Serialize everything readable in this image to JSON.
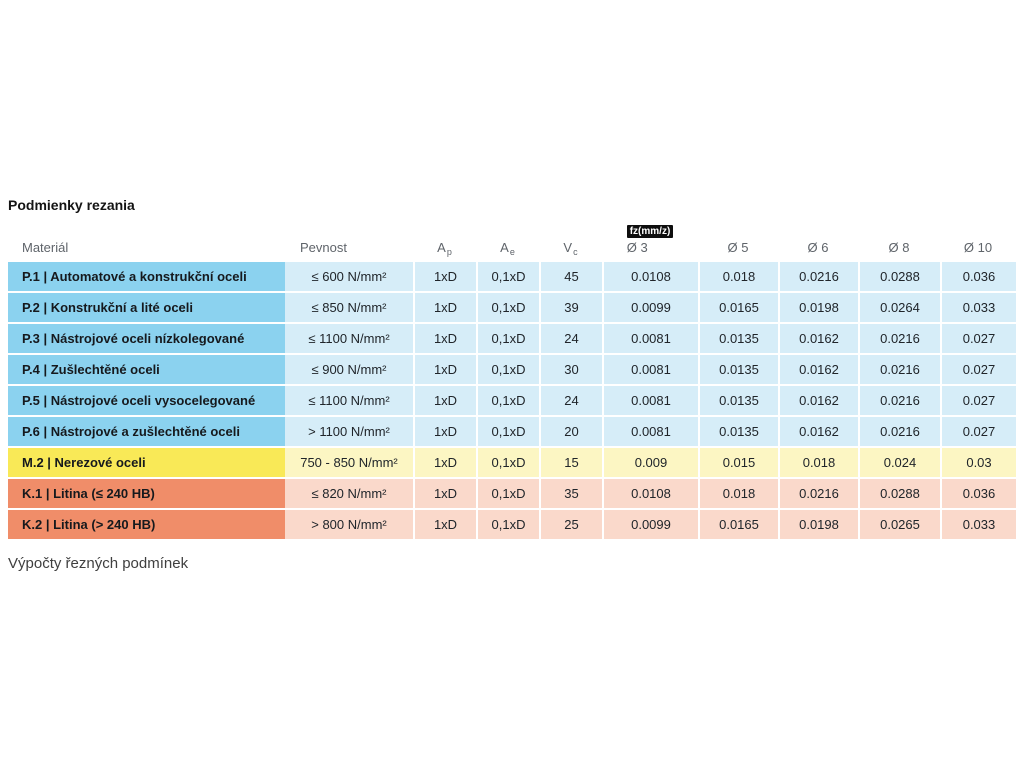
{
  "page": {
    "title": "Podmienky rezania",
    "footer_text": "Výpočty řezných podmínek",
    "background_color": "#ffffff"
  },
  "table": {
    "headers": {
      "material": "Materiál",
      "pevnost": "Pevnost",
      "ap": {
        "base": "A",
        "sub": "p"
      },
      "ae": {
        "base": "A",
        "sub": "e"
      },
      "vc": {
        "base": "V",
        "sub": "c"
      },
      "fz_badge": "fz(mm/z)",
      "diameters": [
        "Ø 3",
        "Ø 5",
        "Ø 6",
        "Ø 8",
        "Ø 10"
      ]
    },
    "group_colors": {
      "P": {
        "strong": "#8bd2ef",
        "light": "#d6edf8"
      },
      "M": {
        "strong": "#f9e957",
        "light": "#fcf6c3"
      },
      "K": {
        "strong": "#f08d69",
        "light": "#fad9cb"
      }
    },
    "text_colors": {
      "title": "#141414",
      "header": "#5f646a",
      "cell": "#20252a",
      "footer": "#3f3f3f",
      "badge_bg": "#0e0e0e",
      "badge_text": "#ffffff"
    }
  },
  "chart_data": {
    "type": "table",
    "title": "Podmienky rezania",
    "columns": [
      "Materiál",
      "Pevnost",
      "Ap",
      "Ae",
      "Vc",
      "fz(mm/z) Ø 3",
      "Ø 5",
      "Ø 6",
      "Ø 8",
      "Ø 10"
    ],
    "rows": [
      {
        "group": "P",
        "material": "P.1 | Automatové a konstrukční oceli",
        "pevnost": "≤ 600 N/mm²",
        "ap": "1xD",
        "ae": "0,1xD",
        "vc": "45",
        "fz": [
          "0.0108",
          "0.018",
          "0.0216",
          "0.0288",
          "0.036"
        ]
      },
      {
        "group": "P",
        "material": "P.2 | Konstrukční a lité oceli",
        "pevnost": "≤ 850 N/mm²",
        "ap": "1xD",
        "ae": "0,1xD",
        "vc": "39",
        "fz": [
          "0.0099",
          "0.0165",
          "0.0198",
          "0.0264",
          "0.033"
        ]
      },
      {
        "group": "P",
        "material": "P.3 | Nástrojové oceli nízkolegované",
        "pevnost": "≤ 1100 N/mm²",
        "ap": "1xD",
        "ae": "0,1xD",
        "vc": "24",
        "fz": [
          "0.0081",
          "0.0135",
          "0.0162",
          "0.0216",
          "0.027"
        ]
      },
      {
        "group": "P",
        "material": "P.4 | Zušlechtěné oceli",
        "pevnost": "≤ 900 N/mm²",
        "ap": "1xD",
        "ae": "0,1xD",
        "vc": "30",
        "fz": [
          "0.0081",
          "0.0135",
          "0.0162",
          "0.0216",
          "0.027"
        ]
      },
      {
        "group": "P",
        "material": "P.5 | Nástrojové oceli vysocelegované",
        "pevnost": "≤ 1100 N/mm²",
        "ap": "1xD",
        "ae": "0,1xD",
        "vc": "24",
        "fz": [
          "0.0081",
          "0.0135",
          "0.0162",
          "0.0216",
          "0.027"
        ]
      },
      {
        "group": "P",
        "material": "P.6 | Nástrojové a zušlechtěné oceli",
        "pevnost": "> 1100 N/mm²",
        "ap": "1xD",
        "ae": "0,1xD",
        "vc": "20",
        "fz": [
          "0.0081",
          "0.0135",
          "0.0162",
          "0.0216",
          "0.027"
        ]
      },
      {
        "group": "M",
        "material": "M.2 | Nerezové oceli",
        "pevnost": "750 - 850 N/mm²",
        "ap": "1xD",
        "ae": "0,1xD",
        "vc": "15",
        "fz": [
          "0.009",
          "0.015",
          "0.018",
          "0.024",
          "0.03"
        ]
      },
      {
        "group": "K",
        "material": "K.1 | Litina (≤ 240 HB)",
        "pevnost": "≤ 820 N/mm²",
        "ap": "1xD",
        "ae": "0,1xD",
        "vc": "35",
        "fz": [
          "0.0108",
          "0.018",
          "0.0216",
          "0.0288",
          "0.036"
        ]
      },
      {
        "group": "K",
        "material": "K.2 | Litina (> 240 HB)",
        "pevnost": "> 800 N/mm²",
        "ap": "1xD",
        "ae": "0,1xD",
        "vc": "25",
        "fz": [
          "0.0099",
          "0.0165",
          "0.0198",
          "0.0265",
          "0.033"
        ]
      }
    ]
  }
}
